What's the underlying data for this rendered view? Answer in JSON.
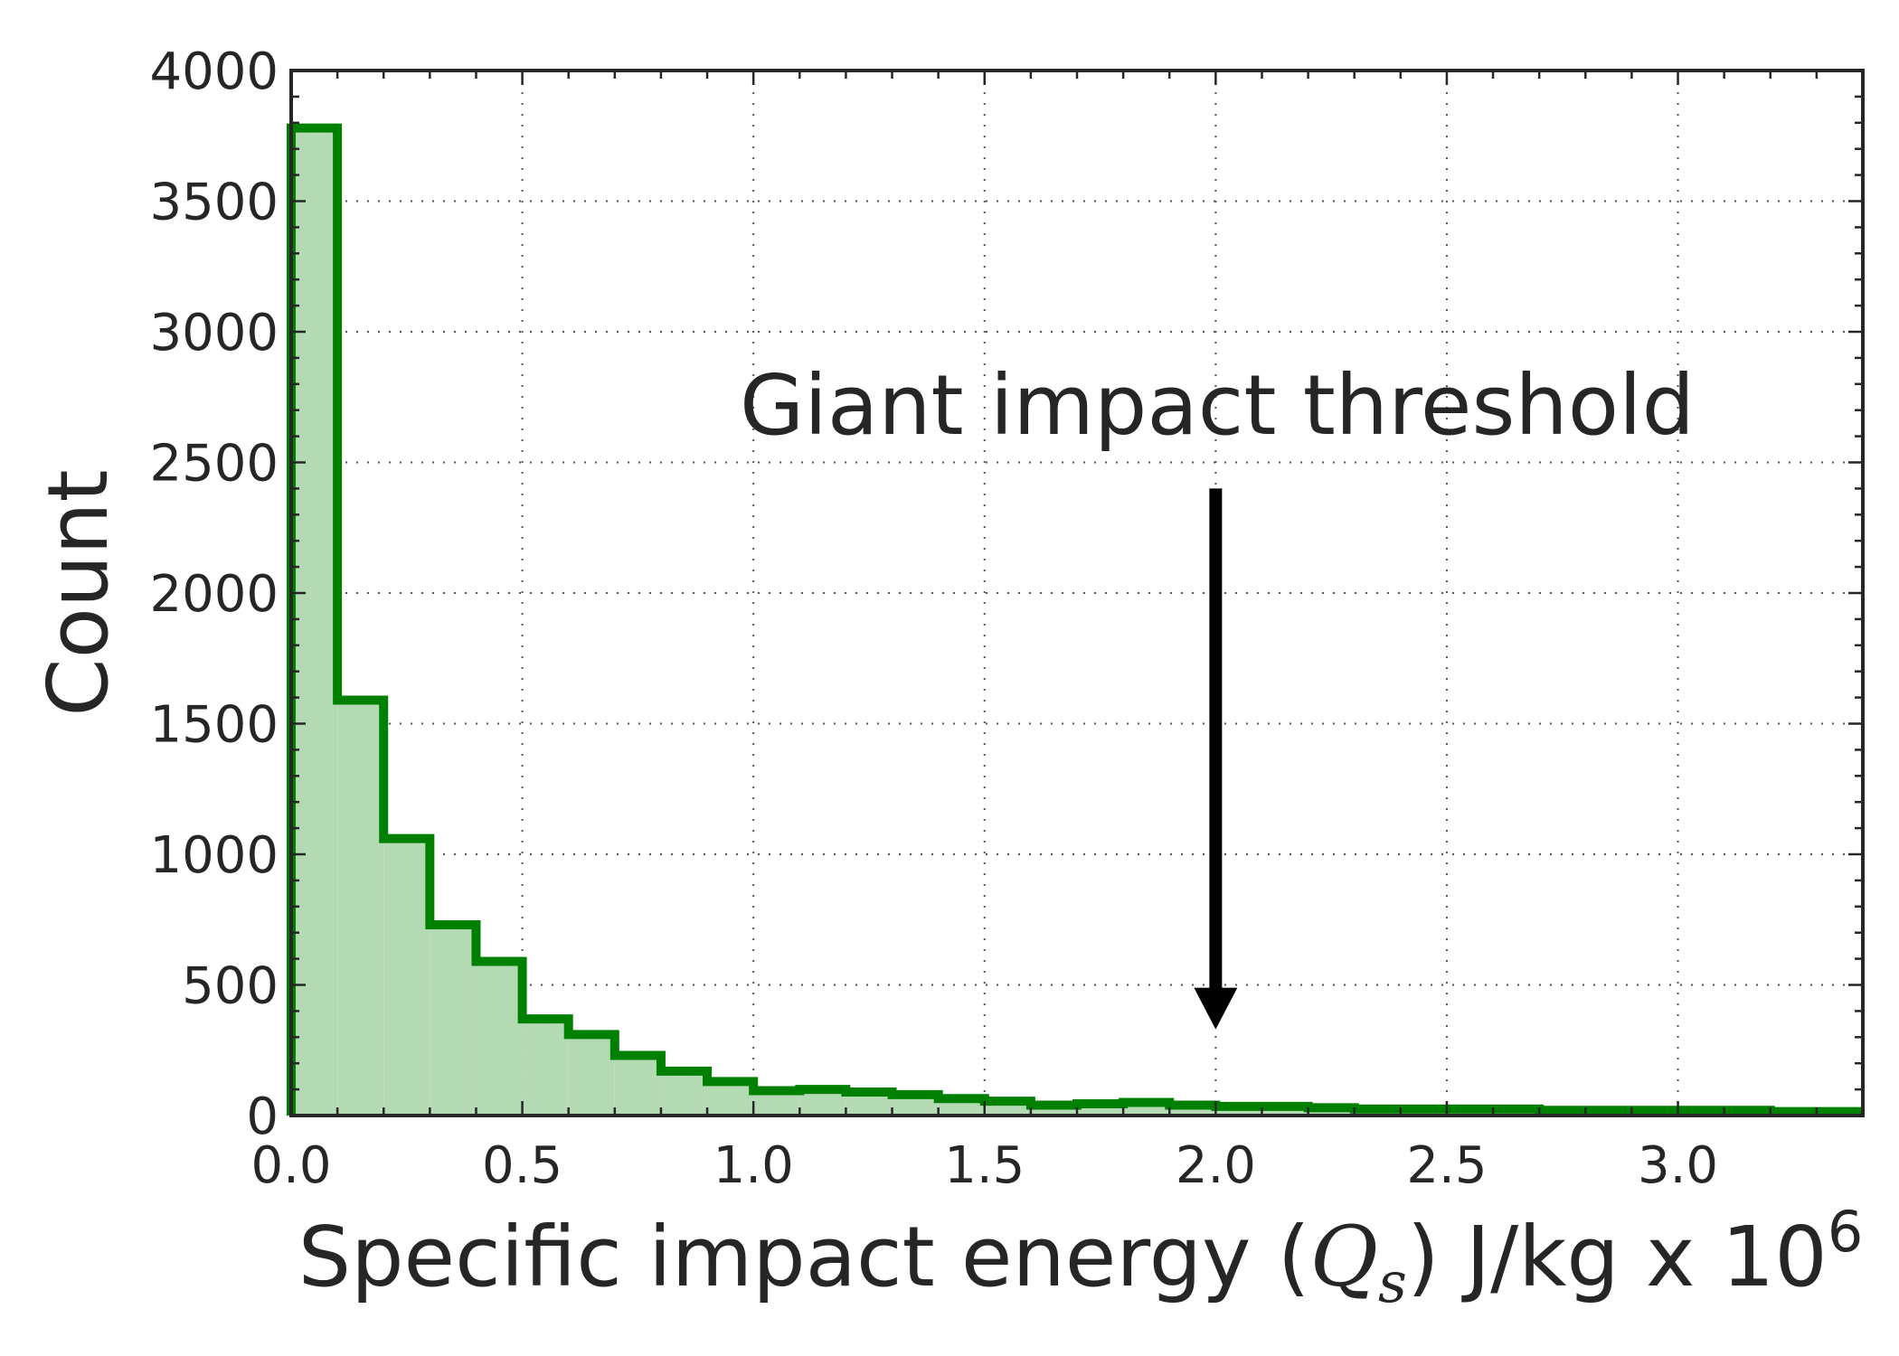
{
  "chart_data": {
    "type": "histogram",
    "title": "",
    "xlabel": {
      "prefix": "Specific impact energy (",
      "math_symbol": "Q",
      "math_subscript": "s",
      "suffix": ") J/kg x 10",
      "exponent": "6"
    },
    "ylabel": "Count",
    "xlim": [
      0.0,
      3.4
    ],
    "ylim": [
      0,
      4000
    ],
    "x_ticks": [
      0.0,
      0.5,
      1.0,
      1.5,
      2.0,
      2.5,
      3.0
    ],
    "x_tick_labels": [
      "0.0",
      "0.5",
      "1.0",
      "1.5",
      "2.0",
      "2.5",
      "3.0"
    ],
    "y_ticks": [
      0,
      500,
      1000,
      1500,
      2000,
      2500,
      3000,
      3500,
      4000
    ],
    "y_tick_labels": [
      "0",
      "500",
      "1000",
      "1500",
      "2000",
      "2500",
      "3000",
      "3500",
      "4000"
    ],
    "grid": true,
    "bin_width": 0.1,
    "bin_edges_start": 0.0,
    "counts": [
      3780,
      1590,
      1060,
      730,
      590,
      370,
      310,
      230,
      170,
      130,
      95,
      100,
      90,
      80,
      65,
      55,
      40,
      45,
      50,
      40,
      35,
      35,
      30,
      25,
      25,
      25,
      25,
      20,
      20,
      20,
      20,
      20,
      15,
      15
    ],
    "line_color": "#008000",
    "fill_color": "#b4dab4",
    "annotation": {
      "text": "Giant impact threshold",
      "arrow_x": 2.0,
      "arrow_from_y": 2400,
      "arrow_to_y": 330
    }
  }
}
